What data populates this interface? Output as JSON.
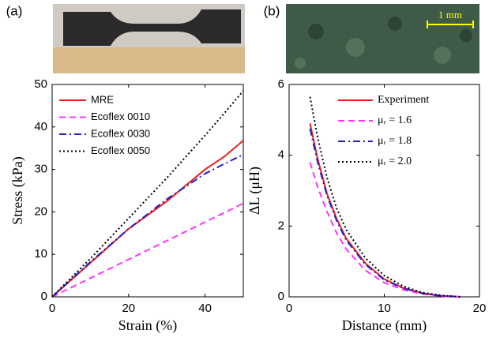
{
  "chart_data": [
    {
      "type": "line",
      "panel_label": "(a)",
      "xlabel": "Strain (%)",
      "ylabel": "Stress (kPa)",
      "x": [
        0,
        10,
        20,
        30,
        40,
        45,
        50
      ],
      "series": [
        {
          "name": "MRE",
          "color": "#ee1c1c",
          "dash": "solid",
          "values": [
            0,
            8,
            16,
            22.5,
            30,
            33,
            36.8
          ]
        },
        {
          "name": "Ecoflex 0010",
          "color": "#ff33ff",
          "dash": "dashed",
          "values": [
            0,
            4.4,
            8.8,
            13.2,
            17.6,
            19.8,
            22
          ]
        },
        {
          "name": "Ecoflex 0030",
          "color": "#1f1fcc",
          "dash": "dashdot",
          "values": [
            0,
            8.2,
            16,
            23,
            29,
            31.3,
            33.5
          ]
        },
        {
          "name": "Ecoflex 0050",
          "color": "#000000",
          "dash": "dotted",
          "values": [
            0,
            9,
            18.5,
            28,
            38,
            43.2,
            48.5
          ]
        }
      ],
      "xlim": [
        0,
        50
      ],
      "xticks": [
        0,
        20,
        40
      ],
      "ylim": [
        0,
        50
      ],
      "yticks": [
        0,
        10,
        20,
        30,
        40,
        50
      ],
      "legend": "upper left"
    },
    {
      "type": "line",
      "panel_label": "(b)",
      "xlabel": "Distance (mm)",
      "ylabel": "ΔL (μH)",
      "scale_bar_label": "1 mm",
      "x": [
        2.2,
        3,
        4,
        5,
        6,
        8,
        10,
        12,
        14,
        16,
        18
      ],
      "series": [
        {
          "name": "Experiment",
          "color": "#ee1c1c",
          "dash": "solid",
          "values": [
            4.9,
            3.9,
            2.9,
            2.2,
            1.65,
            0.95,
            0.5,
            0.25,
            0.1,
            0.03,
            0
          ]
        },
        {
          "name": "μᵣ = 1.6",
          "color": "#ff33ff",
          "dash": "dashed",
          "values": [
            3.8,
            3.1,
            2.4,
            1.8,
            1.35,
            0.75,
            0.4,
            0.2,
            0.08,
            0.02,
            0
          ]
        },
        {
          "name": "μᵣ = 1.8",
          "color": "#1f1fcc",
          "dash": "dashdot",
          "values": [
            4.75,
            3.8,
            2.85,
            2.15,
            1.6,
            0.92,
            0.48,
            0.24,
            0.1,
            0.03,
            0
          ]
        },
        {
          "name": "μᵣ = 2.0",
          "color": "#000000",
          "dash": "dotted",
          "values": [
            5.65,
            4.5,
            3.35,
            2.5,
            1.9,
            1.1,
            0.6,
            0.3,
            0.12,
            0.04,
            0
          ]
        }
      ],
      "xlim": [
        0,
        20
      ],
      "xticks": [
        0,
        10,
        20
      ],
      "ylim": [
        0,
        6
      ],
      "yticks": [
        0,
        2,
        4,
        6
      ],
      "legend": "upper right"
    }
  ]
}
